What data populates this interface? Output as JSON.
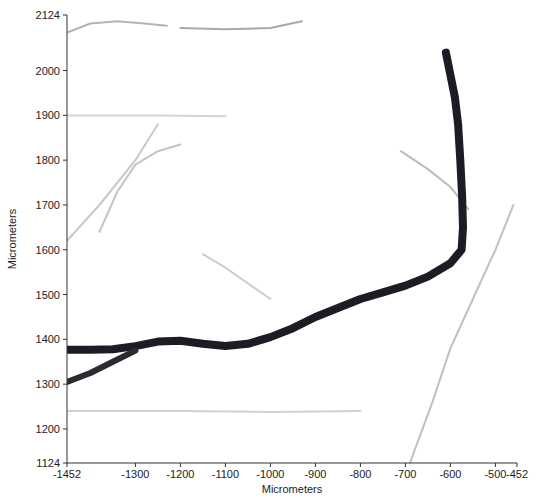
{
  "chart_data": {
    "type": "line",
    "x_label": "Micrometers",
    "y_label": "Micrometers",
    "xlim": [
      -1452,
      -452
    ],
    "ylim": [
      1124,
      2124
    ],
    "xticks": [
      -1452,
      -1300,
      -1200,
      -1100,
      -1000,
      -900,
      -800,
      -700,
      -600,
      -500,
      -452
    ],
    "yticks": [
      1124,
      1200,
      1300,
      1400,
      1500,
      1600,
      1700,
      1800,
      1900,
      2000,
      2124
    ],
    "grid": false,
    "series": [
      {
        "color": "#1c1c24",
        "line_style": "solid",
        "x": [
          -610,
          -600,
          -590,
          -583,
          -578,
          -574,
          -572,
          -575,
          -600,
          -650,
          -700,
          -750,
          -800,
          -850,
          -900,
          -950,
          -1000,
          -1050,
          -1100,
          -1150,
          -1200,
          -1250,
          -1300,
          -1350,
          -1400,
          -1452
        ],
        "values": [
          2040,
          1990,
          1940,
          1880,
          1800,
          1720,
          1650,
          1600,
          1570,
          1540,
          1520,
          1505,
          1490,
          1470,
          1450,
          1425,
          1405,
          1390,
          1385,
          1390,
          1397,
          1395,
          1385,
          1378,
          1377,
          1377
        ]
      },
      {
        "color": "#2a2a30",
        "line_style": "solid",
        "x": [
          -1300,
          -1350,
          -1400,
          -1452
        ],
        "values": [
          1375,
          1350,
          1325,
          1305
        ]
      },
      {
        "color": "#b4b4b4",
        "line_style": "solid",
        "x": [
          -1452,
          -1400,
          -1340,
          -1280,
          -1230
        ],
        "values": [
          2085,
          2105,
          2110,
          2105,
          2100
        ]
      },
      {
        "color": "#a8a8a8",
        "line_style": "solid",
        "x": [
          -1200,
          -1100,
          -1000,
          -930
        ],
        "values": [
          2095,
          2092,
          2095,
          2110
        ]
      },
      {
        "color": "#c4c4c4",
        "line_style": "solid",
        "x": [
          -1380,
          -1340,
          -1300,
          -1250,
          -1200
        ],
        "values": [
          1640,
          1730,
          1790,
          1820,
          1835
        ]
      },
      {
        "color": "#c8c8c8",
        "line_style": "solid",
        "x": [
          -1452,
          -1380,
          -1300,
          -1250
        ],
        "values": [
          1620,
          1700,
          1800,
          1880
        ]
      },
      {
        "color": "#c0c0c0",
        "line_style": "solid",
        "x": [
          -690,
          -640,
          -600,
          -550,
          -500,
          -460
        ],
        "values": [
          1124,
          1260,
          1380,
          1490,
          1600,
          1700
        ]
      },
      {
        "color": "#bcbcbc",
        "line_style": "solid",
        "x": [
          -710,
          -650,
          -600,
          -560
        ],
        "values": [
          1820,
          1780,
          1740,
          1690
        ]
      },
      {
        "color": "#d0d0d0",
        "line_style": "solid",
        "x": [
          -1452,
          -1200,
          -1000,
          -800
        ],
        "values": [
          1240,
          1240,
          1238,
          1240
        ]
      },
      {
        "color": "#d4d4d4",
        "line_style": "solid",
        "x": [
          -1452,
          -1250,
          -1100
        ],
        "values": [
          1900,
          1900,
          1898
        ]
      },
      {
        "color": "#cccccc",
        "line_style": "solid",
        "x": [
          -1150,
          -1100,
          -1000
        ],
        "values": [
          1590,
          1560,
          1490
        ]
      }
    ]
  }
}
